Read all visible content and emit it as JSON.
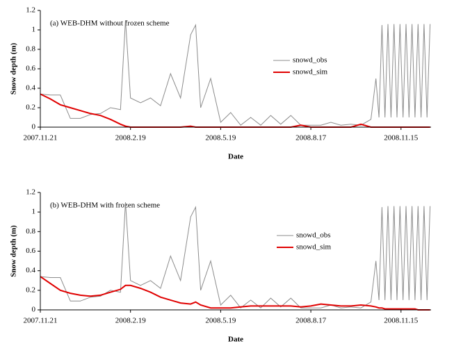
{
  "chart_data": [
    {
      "type": "line",
      "title": "(a) WEB-DHM without frozen scheme",
      "x_label": "Date",
      "y_label": "Snow depth (m)",
      "x": [
        "2007.11.21",
        "2007.12.1",
        "2007.12.11",
        "2007.12.21",
        "2007.12.31",
        "2008.1.10",
        "2008.1.20",
        "2008.1.30",
        "2008.2.9",
        "2008.2.14",
        "2008.2.19",
        "2008.2.29",
        "2008.3.10",
        "2008.3.20",
        "2008.3.30",
        "2008.4.9",
        "2008.4.19",
        "2008.4.24",
        "2008.4.29",
        "2008.5.9",
        "2008.5.19",
        "2008.5.29",
        "2008.6.8",
        "2008.6.18",
        "2008.6.28",
        "2008.7.8",
        "2008.7.18",
        "2008.7.28",
        "2008.8.7",
        "2008.8.17",
        "2008.8.27",
        "2008.9.6",
        "2008.9.16",
        "2008.9.26",
        "2008.10.6",
        "2008.10.16",
        "2008.10.21",
        "2008.10.24",
        "2008.10.27",
        "2008.10.30",
        "2008.11.2",
        "2008.11.5",
        "2008.11.8",
        "2008.11.11",
        "2008.11.14",
        "2008.11.17",
        "2008.11.20",
        "2008.11.23",
        "2008.11.26",
        "2008.11.29",
        "2008.12.2",
        "2008.12.5",
        "2008.12.8",
        "2008.12.11",
        "2008.12.14"
      ],
      "series": [
        {
          "name": "snowd_obs",
          "color": "#8c8c8c",
          "values": [
            0.34,
            0.33,
            0.33,
            0.09,
            0.09,
            0.13,
            0.14,
            0.2,
            0.18,
            1.1,
            0.3,
            0.25,
            0.3,
            0.22,
            0.55,
            0.3,
            0.95,
            1.05,
            0.2,
            0.5,
            0.05,
            0.15,
            0.02,
            0.1,
            0.02,
            0.12,
            0.03,
            0.12,
            0.02,
            0.02,
            0.02,
            0.05,
            0.02,
            0.03,
            0.02,
            0.08,
            0.5,
            0.1,
            1.05,
            0.1,
            1.06,
            0.1,
            1.06,
            0.1,
            1.06,
            0.1,
            1.06,
            0.1,
            1.06,
            0.1,
            1.06,
            0.1,
            1.06,
            0.1,
            1.06
          ]
        },
        {
          "name": "snowd_sim",
          "color": "#e00000",
          "values": [
            0.34,
            0.29,
            0.23,
            0.2,
            0.17,
            0.14,
            0.12,
            0.08,
            0.03,
            0.01,
            0,
            0,
            0,
            0,
            0,
            0,
            0.01,
            0,
            0,
            0,
            0,
            0,
            0,
            0,
            0,
            0,
            0,
            0,
            0.02,
            0,
            0,
            0,
            0,
            0,
            0.03,
            0,
            0,
            0,
            0,
            0,
            0,
            0,
            0,
            0,
            0,
            0,
            0,
            0,
            0,
            0,
            0,
            0,
            0,
            0,
            0
          ]
        }
      ],
      "xlim": [
        "2007.11.21",
        "2008.12.15"
      ],
      "xticks": [
        "2007.11.21",
        "2008.2.19",
        "2008.5.19",
        "2008.8.17",
        "2008.11.15"
      ],
      "ylim": [
        0,
        1.2
      ],
      "yticks": [
        0,
        0.2,
        0.4,
        0.6,
        0.8,
        1,
        1.2
      ]
    },
    {
      "type": "line",
      "title": "(b) WEB-DHM with frozen scheme",
      "x_label": "Date",
      "y_label": "Snow depth (m)",
      "x": [
        "2007.11.21",
        "2007.12.1",
        "2007.12.11",
        "2007.12.21",
        "2007.12.31",
        "2008.1.10",
        "2008.1.20",
        "2008.1.30",
        "2008.2.9",
        "2008.2.14",
        "2008.2.19",
        "2008.2.29",
        "2008.3.10",
        "2008.3.20",
        "2008.3.30",
        "2008.4.9",
        "2008.4.19",
        "2008.4.24",
        "2008.4.29",
        "2008.5.9",
        "2008.5.19",
        "2008.5.29",
        "2008.6.8",
        "2008.6.18",
        "2008.6.28",
        "2008.7.8",
        "2008.7.18",
        "2008.7.28",
        "2008.8.7",
        "2008.8.17",
        "2008.8.27",
        "2008.9.6",
        "2008.9.16",
        "2008.9.26",
        "2008.10.6",
        "2008.10.16",
        "2008.10.21",
        "2008.10.24",
        "2008.10.27",
        "2008.10.30",
        "2008.11.2",
        "2008.11.5",
        "2008.11.8",
        "2008.11.11",
        "2008.11.14",
        "2008.11.17",
        "2008.11.20",
        "2008.11.23",
        "2008.11.26",
        "2008.11.29",
        "2008.12.2",
        "2008.12.5",
        "2008.12.8",
        "2008.12.11",
        "2008.12.14"
      ],
      "series": [
        {
          "name": "snowd_obs",
          "color": "#8c8c8c",
          "values": [
            0.34,
            0.33,
            0.33,
            0.09,
            0.09,
            0.13,
            0.14,
            0.2,
            0.18,
            1.1,
            0.3,
            0.25,
            0.3,
            0.22,
            0.55,
            0.3,
            0.95,
            1.05,
            0.2,
            0.5,
            0.05,
            0.15,
            0.02,
            0.1,
            0.02,
            0.12,
            0.03,
            0.12,
            0.02,
            0.02,
            0.02,
            0.05,
            0.02,
            0.03,
            0.02,
            0.08,
            0.5,
            0.1,
            1.05,
            0.1,
            1.06,
            0.1,
            1.06,
            0.1,
            1.06,
            0.1,
            1.06,
            0.1,
            1.06,
            0.1,
            1.06,
            0.1,
            1.06,
            0.1,
            1.06
          ]
        },
        {
          "name": "snowd_sim",
          "color": "#e00000",
          "values": [
            0.34,
            0.27,
            0.2,
            0.17,
            0.15,
            0.14,
            0.15,
            0.18,
            0.21,
            0.25,
            0.25,
            0.22,
            0.18,
            0.13,
            0.1,
            0.07,
            0.06,
            0.08,
            0.05,
            0.02,
            0.02,
            0.02,
            0.03,
            0.04,
            0.04,
            0.04,
            0.04,
            0.04,
            0.03,
            0.04,
            0.06,
            0.05,
            0.04,
            0.04,
            0.05,
            0.04,
            0.03,
            0.02,
            0.02,
            0.01,
            0.01,
            0.01,
            0.01,
            0.01,
            0.01,
            0.01,
            0.01,
            0.01,
            0.01,
            0.01,
            0,
            0,
            0,
            0,
            0
          ]
        }
      ],
      "xlim": [
        "2007.11.21",
        "2008.12.15"
      ],
      "xticks": [
        "2007.11.21",
        "2008.2.19",
        "2008.5.19",
        "2008.8.17",
        "2008.11.15"
      ],
      "ylim": [
        0,
        1.2
      ],
      "yticks": [
        0,
        0.2,
        0.4,
        0.6,
        0.8,
        1,
        1.2
      ]
    }
  ]
}
